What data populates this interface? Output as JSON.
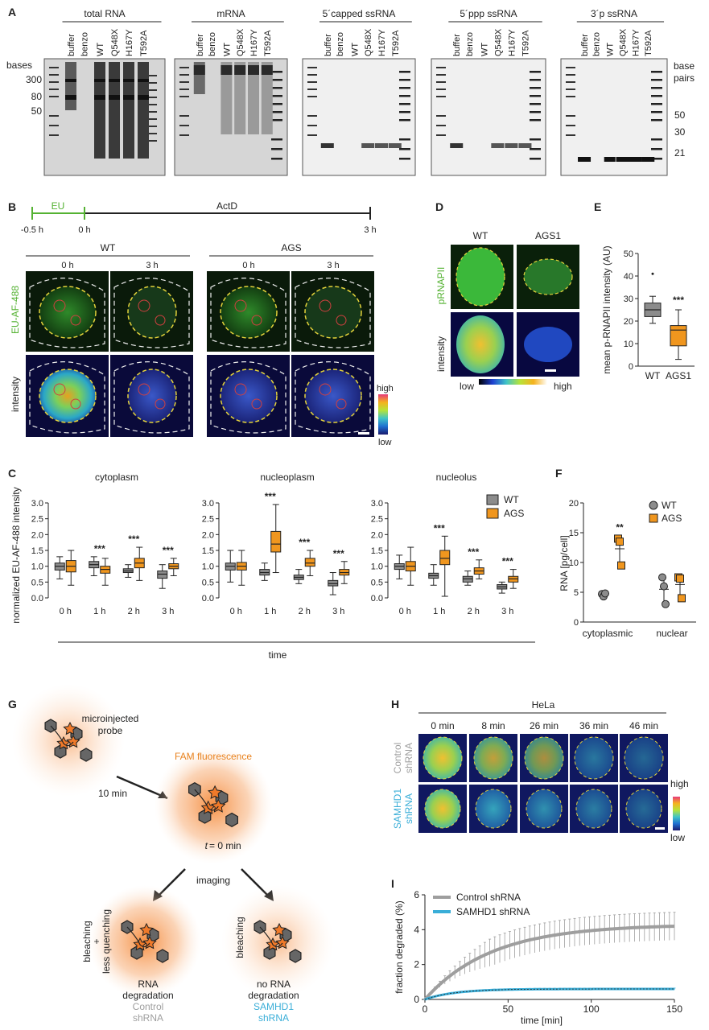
{
  "panel_labels": [
    "A",
    "B",
    "C",
    "D",
    "E",
    "F",
    "G",
    "H",
    "I"
  ],
  "panelA": {
    "gels": [
      {
        "title": "total RNA"
      },
      {
        "title": "mRNA"
      },
      {
        "title": "5´capped ssRNA"
      },
      {
        "title": "5´ppp ssRNA"
      },
      {
        "title": "3´p ssRNA"
      }
    ],
    "lanes": [
      "buffer",
      "benzo",
      "WT",
      "Q548X",
      "H167Y",
      "T592A"
    ],
    "left_axis_title": "bases",
    "left_ticks": [
      "300",
      "80",
      "50"
    ],
    "right_axis_title_1": "base",
    "right_axis_title_2": "pairs",
    "right_ticks": [
      "50",
      "30",
      "21"
    ]
  },
  "panelB": {
    "timeline": {
      "eu": "EU",
      "actd": "ActD",
      "t0": "-0.5 h",
      "t1": "0 h",
      "t2": "3 h"
    },
    "groups": [
      "WT",
      "AGS"
    ],
    "times": [
      "0 h",
      "3 h",
      "0 h",
      "3 h"
    ],
    "row_labels": [
      "EU-AF-488",
      "intensity"
    ],
    "scale_high": "high",
    "scale_low": "low"
  },
  "panelC": {
    "titles": [
      "cytoplasm",
      "nucleoplasm",
      "nucleolus"
    ],
    "ylabel": "normalized EU-AF-488 intensity",
    "xlabel": "time",
    "xticks": [
      "0 h",
      "1 h",
      "2 h",
      "3 h"
    ],
    "legend": [
      "WT",
      "AGS"
    ],
    "sig": "***",
    "colors": {
      "WT": "#8c8c8c",
      "AGS": "#f0961e"
    }
  },
  "panelD": {
    "cols": [
      "WT",
      "AGS1"
    ],
    "rows": [
      "pRNAPII",
      "intensity"
    ],
    "scale_low": "low",
    "scale_high": "high"
  },
  "panelE": {
    "ylabel": "mean p-RNAPII intensity (AU)",
    "yticks": [
      "0",
      "10",
      "20",
      "30",
      "40",
      "50"
    ],
    "categories": [
      "WT",
      "AGS1"
    ],
    "sig": "***"
  },
  "panelF": {
    "ylabel": "RNA [pg/cell]",
    "yticks": [
      "0",
      "5",
      "10",
      "15",
      "20"
    ],
    "categories": [
      "cytoplasmic",
      "nuclear"
    ],
    "legend": [
      "WT",
      "AGS"
    ],
    "sig": "**"
  },
  "panelG": {
    "probe": "microinjected",
    "probe2": "probe",
    "min10": "10 min",
    "fam": "FAM fluorescence",
    "t0": "= 0 min",
    "t_italic": "t",
    "imaging": "imaging",
    "left_side1": "bleaching",
    "left_side2": "+",
    "left_side3": "less quenching",
    "right_side": "bleaching",
    "res_left1": "RNA",
    "res_left2": "degradation",
    "res_left3": "Control",
    "res_left4": "shRNA",
    "res_right1": "no RNA",
    "res_right2": "degradation",
    "res_right3": "SAMHD1",
    "res_right4": "shRNA"
  },
  "panelH": {
    "title": "HeLa",
    "times": [
      "0 min",
      "8 min",
      "26 min",
      "36 min",
      "46 min"
    ],
    "row1a": "Control",
    "row1b": "shRNA",
    "row2a": "SAMHD1",
    "row2b": "shRNA",
    "scale_high": "high",
    "scale_low": "low"
  },
  "chart_data": [
    {
      "type": "box",
      "title": "cytoplasm",
      "ylabel": "normalized EU-AF-488 intensity",
      "ylim": [
        0,
        3.0
      ],
      "categories": [
        "0 h",
        "1 h",
        "2 h",
        "3 h"
      ],
      "series": [
        {
          "name": "WT",
          "median": [
            1.0,
            1.05,
            0.85,
            0.75
          ],
          "q1": [
            0.88,
            0.95,
            0.8,
            0.62
          ],
          "q3": [
            1.1,
            1.15,
            0.92,
            0.85
          ],
          "min": [
            0.6,
            0.7,
            0.65,
            0.3
          ],
          "max": [
            1.3,
            1.3,
            1.05,
            1.05
          ]
        },
        {
          "name": "AGS",
          "median": [
            1.0,
            0.9,
            1.1,
            1.0
          ],
          "q1": [
            0.82,
            0.78,
            0.95,
            0.92
          ],
          "q3": [
            1.18,
            1.0,
            1.25,
            1.08
          ],
          "min": [
            0.4,
            0.4,
            0.55,
            0.7
          ],
          "max": [
            1.5,
            1.25,
            1.6,
            1.25
          ]
        }
      ],
      "significance": [
        "",
        "***",
        "***",
        "***"
      ]
    },
    {
      "type": "box",
      "title": "nucleoplasm",
      "ylim": [
        0,
        3.0
      ],
      "categories": [
        "0 h",
        "1 h",
        "2 h",
        "3 h"
      ],
      "series": [
        {
          "name": "WT",
          "median": [
            1.0,
            0.8,
            0.65,
            0.45
          ],
          "q1": [
            0.88,
            0.72,
            0.58,
            0.38
          ],
          "q3": [
            1.1,
            0.9,
            0.72,
            0.55
          ],
          "min": [
            0.5,
            0.55,
            0.45,
            0.1
          ],
          "max": [
            1.5,
            1.1,
            0.9,
            0.8
          ]
        },
        {
          "name": "AGS",
          "median": [
            1.0,
            1.7,
            1.1,
            0.8
          ],
          "q1": [
            0.88,
            1.45,
            1.0,
            0.72
          ],
          "q3": [
            1.12,
            2.1,
            1.25,
            0.9
          ],
          "min": [
            0.4,
            0.8,
            0.7,
            0.45
          ],
          "max": [
            1.5,
            2.95,
            1.5,
            1.15
          ]
        }
      ],
      "significance": [
        "",
        "***",
        "***",
        "***"
      ]
    },
    {
      "type": "box",
      "title": "nucleolus",
      "ylim": [
        0,
        3.0
      ],
      "categories": [
        "0 h",
        "1 h",
        "2 h",
        "3 h"
      ],
      "series": [
        {
          "name": "WT",
          "median": [
            1.0,
            0.7,
            0.6,
            0.35
          ],
          "q1": [
            0.9,
            0.62,
            0.5,
            0.28
          ],
          "q3": [
            1.08,
            0.78,
            0.68,
            0.42
          ],
          "min": [
            0.6,
            0.4,
            0.4,
            0.15
          ],
          "max": [
            1.35,
            1.05,
            0.85,
            0.5
          ]
        },
        {
          "name": "AGS",
          "median": [
            1.0,
            1.25,
            0.85,
            0.6
          ],
          "q1": [
            0.85,
            1.05,
            0.75,
            0.5
          ],
          "q3": [
            1.15,
            1.5,
            0.95,
            0.68
          ],
          "min": [
            0.4,
            0.05,
            0.6,
            0.3
          ],
          "max": [
            1.6,
            1.95,
            1.2,
            0.9
          ]
        }
      ],
      "significance": [
        "",
        "***",
        "***",
        "***"
      ]
    },
    {
      "type": "box",
      "title": "",
      "ylabel": "mean p-RNAPII intensity (AU)",
      "ylim": [
        0,
        50
      ],
      "categories": [
        "WT",
        "AGS1"
      ],
      "series": [
        {
          "name": "WT",
          "median": [
            25
          ],
          "q1": [
            22
          ],
          "q3": [
            28
          ],
          "min": [
            19
          ],
          "max": [
            31
          ]
        },
        {
          "name": "AGS1",
          "median": [
            16
          ],
          "q1": [
            9
          ],
          "q3": [
            18
          ],
          "min": [
            3
          ],
          "max": [
            25
          ]
        }
      ],
      "significance": [
        "",
        "***"
      ]
    },
    {
      "type": "scatter",
      "ylabel": "RNA [pg/cell]",
      "ylim": [
        0,
        20
      ],
      "categories": [
        "cytoplasmic",
        "nuclear"
      ],
      "series": [
        {
          "name": "WT",
          "values": [
            [
              4.7,
              4.3,
              4.8
            ],
            [
              7.5,
              6.0,
              3.0
            ]
          ],
          "mean": [
            4.6,
            5.5
          ]
        },
        {
          "name": "AGS",
          "values": [
            [
              14.0,
              13.5,
              9.5
            ],
            [
              7.5,
              7.3,
              4.0
            ]
          ],
          "mean": [
            12.3,
            6.3
          ]
        }
      ],
      "significance": [
        "**",
        ""
      ]
    },
    {
      "type": "line",
      "xlabel": "time [min]",
      "ylabel": "fraction degraded (%)",
      "xlim": [
        0,
        150
      ],
      "ylim": [
        0,
        6
      ],
      "xticks": [
        0,
        50,
        100,
        150
      ],
      "yticks": [
        0,
        2,
        4,
        6
      ],
      "series": [
        {
          "name": "Control shRNA",
          "color": "#9e9e9e",
          "plateau": 4.3,
          "tau": 40,
          "err": 0.8
        },
        {
          "name": "SAMHD1 shRNA",
          "color": "#3aaed8",
          "plateau": 0.6,
          "tau": 18,
          "err": 0.05
        }
      ]
    }
  ]
}
